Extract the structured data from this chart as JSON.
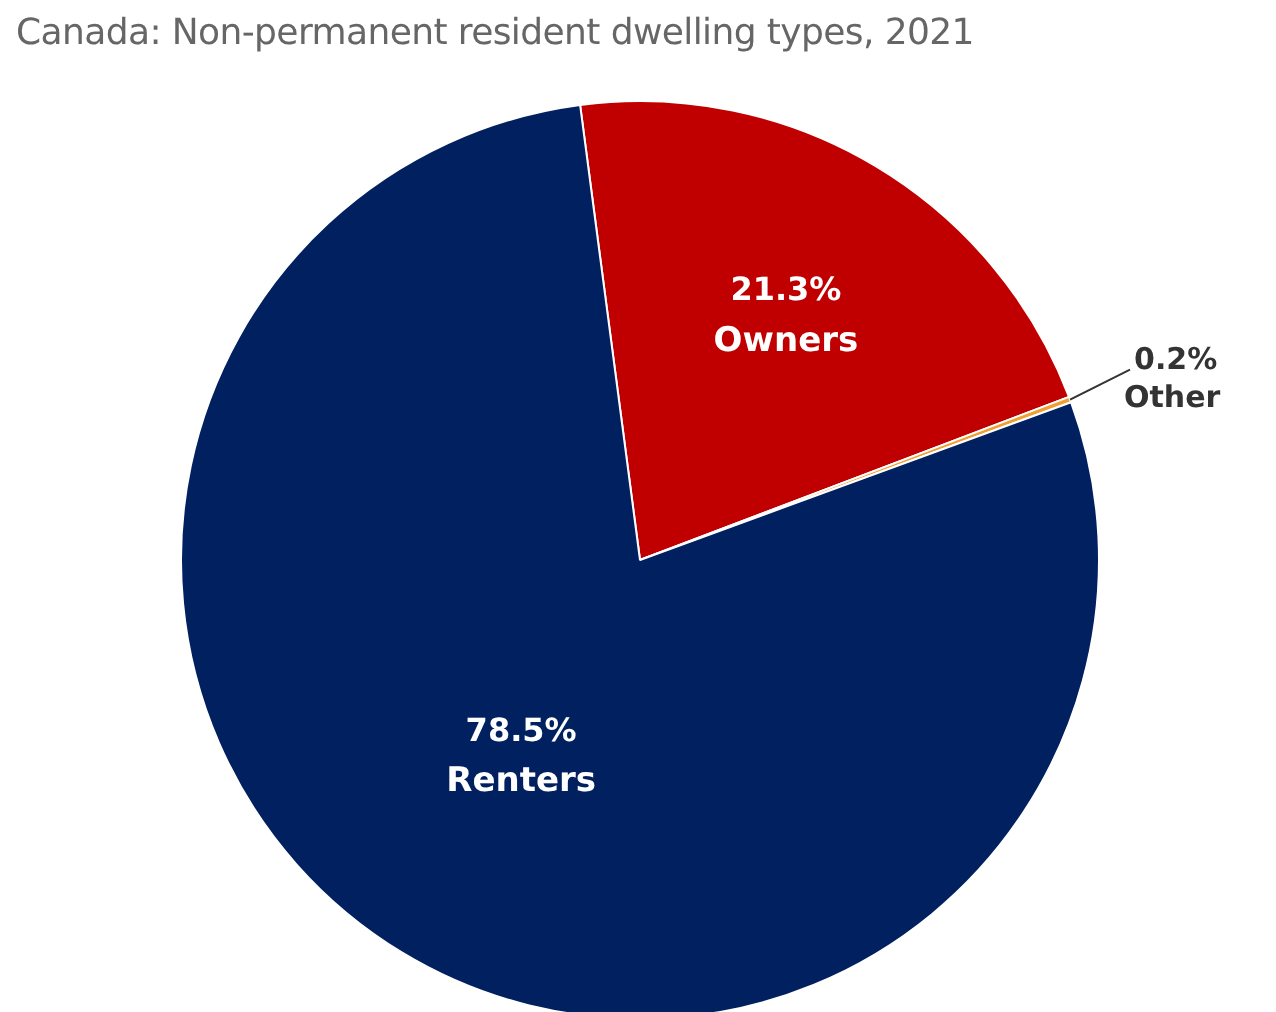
{
  "chart_data": {
    "type": "pie",
    "title": "Canada: Non-permanent resident dwelling types, 2021",
    "categories": [
      "Owners",
      "Other",
      "Renters"
    ],
    "values": [
      21.3,
      0.2,
      78.5
    ],
    "value_labels": [
      "21.3%",
      "0.2%",
      "78.5%"
    ],
    "colors": [
      "#c00000",
      "#f0a030",
      "#002060"
    ],
    "legend": false
  }
}
